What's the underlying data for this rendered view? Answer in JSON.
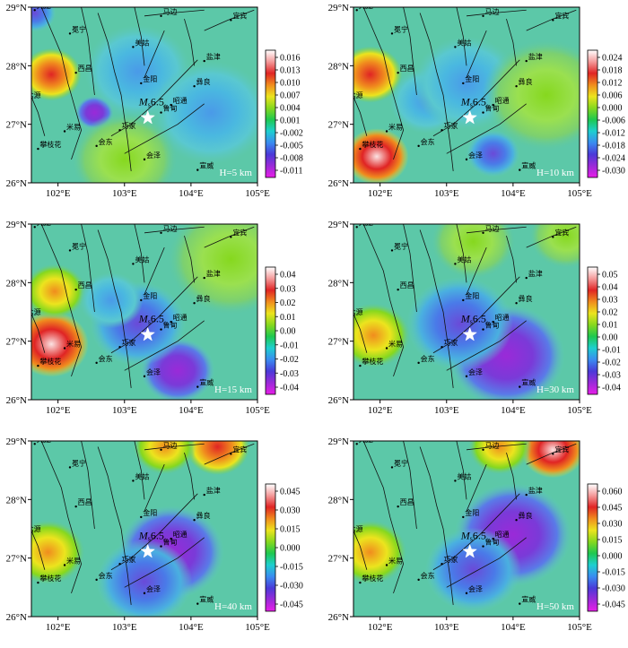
{
  "lat_labels": [
    "29°N",
    "28°N",
    "27°N",
    "26°N"
  ],
  "lon_labels": [
    "102°E",
    "103°E",
    "104°E",
    "105°E"
  ],
  "lat_range": [
    26,
    29
  ],
  "lon_range": [
    101.6,
    105
  ],
  "cities": [
    {
      "name": "九龙",
      "lon": 101.65,
      "lat": 28.95
    },
    {
      "name": "冕宁",
      "lon": 102.18,
      "lat": 28.55
    },
    {
      "name": "马边",
      "lon": 103.55,
      "lat": 28.85
    },
    {
      "name": "宜宾",
      "lon": 104.6,
      "lat": 28.78
    },
    {
      "name": "美姑",
      "lon": 103.13,
      "lat": 28.32
    },
    {
      "name": "盐津",
      "lon": 104.2,
      "lat": 28.08
    },
    {
      "name": "西昌",
      "lon": 102.27,
      "lat": 27.88
    },
    {
      "name": "金阳",
      "lon": 103.25,
      "lat": 27.7
    },
    {
      "name": "彝良",
      "lon": 104.05,
      "lat": 27.65
    },
    {
      "name": "盐源",
      "lon": 101.5,
      "lat": 27.42
    },
    {
      "name": "昭通",
      "lon": 103.7,
      "lat": 27.33
    },
    {
      "name": "鲁甸",
      "lon": 103.55,
      "lat": 27.2
    },
    {
      "name": "米易",
      "lon": 102.1,
      "lat": 26.88
    },
    {
      "name": "巧家",
      "lon": 102.93,
      "lat": 26.9
    },
    {
      "name": "会东",
      "lon": 102.58,
      "lat": 26.63
    },
    {
      "name": "会泽",
      "lon": 103.3,
      "lat": 26.4
    },
    {
      "name": "攀枝花",
      "lon": 101.7,
      "lat": 26.58
    },
    {
      "name": "宣威",
      "lon": 104.1,
      "lat": 26.22
    }
  ],
  "epicenter": {
    "lon": 103.35,
    "lat": 27.11,
    "label_main": "M",
    "label_sub": "s",
    "label_val": "6.5"
  },
  "panels": [
    {
      "depth": "H=5 km",
      "ticks": [
        "0.016",
        "0.013",
        "0.010",
        "0.007",
        "0.004",
        "0.001",
        "-0.002",
        "-0.005",
        "-0.008",
        "-0.011"
      ],
      "blobs": [
        {
          "lon": 101.9,
          "lat": 27.85,
          "amp": 1.0,
          "r": 0.28
        },
        {
          "lon": 101.65,
          "lat": 28.9,
          "amp": -0.8,
          "r": 0.2
        },
        {
          "lon": 102.55,
          "lat": 27.2,
          "amp": -0.9,
          "r": 0.18
        },
        {
          "lon": 103.2,
          "lat": 27.9,
          "amp": -0.4,
          "r": 0.5
        },
        {
          "lon": 104.3,
          "lat": 27.2,
          "amp": -0.3,
          "r": 0.55
        },
        {
          "lon": 103.0,
          "lat": 26.4,
          "amp": 0.25,
          "r": 0.5
        }
      ]
    },
    {
      "depth": "H=10 km",
      "ticks": [
        "0.024",
        "0.018",
        "0.012",
        "0.006",
        "0.000",
        "-0.006",
        "-0.012",
        "-0.018",
        "-0.024",
        "-0.030"
      ],
      "blobs": [
        {
          "lon": 101.85,
          "lat": 27.85,
          "amp": 0.9,
          "r": 0.3
        },
        {
          "lon": 101.95,
          "lat": 26.45,
          "amp": 1.2,
          "r": 0.3
        },
        {
          "lon": 102.7,
          "lat": 27.4,
          "amp": -0.5,
          "r": 0.35
        },
        {
          "lon": 103.7,
          "lat": 26.5,
          "amp": -0.7,
          "r": 0.25
        },
        {
          "lon": 103.3,
          "lat": 27.7,
          "amp": -0.35,
          "r": 0.5
        },
        {
          "lon": 104.5,
          "lat": 27.5,
          "amp": 0.15,
          "r": 0.6
        }
      ]
    },
    {
      "depth": "H=15 km",
      "ticks": [
        "0.04",
        "0.03",
        "0.02",
        "0.01",
        "0.00",
        "-0.01",
        "-0.02",
        "-0.03",
        "-0.04"
      ],
      "blobs": [
        {
          "lon": 101.9,
          "lat": 26.95,
          "amp": 1.2,
          "r": 0.35
        },
        {
          "lon": 101.95,
          "lat": 27.85,
          "amp": 0.6,
          "r": 0.3
        },
        {
          "lon": 103.8,
          "lat": 26.5,
          "amp": -0.9,
          "r": 0.35
        },
        {
          "lon": 103.2,
          "lat": 27.3,
          "amp": -0.55,
          "r": 0.45
        },
        {
          "lon": 102.8,
          "lat": 27.7,
          "amp": -0.4,
          "r": 0.3
        },
        {
          "lon": 104.6,
          "lat": 28.4,
          "amp": 0.15,
          "r": 0.6
        }
      ]
    },
    {
      "depth": "H=30 km",
      "ticks": [
        "0.05",
        "0.04",
        "0.03",
        "0.02",
        "0.01",
        "0.00",
        "-0.01",
        "-0.02",
        "-0.03",
        "-0.04"
      ],
      "blobs": [
        {
          "lon": 101.9,
          "lat": 27.1,
          "amp": 0.65,
          "r": 0.35
        },
        {
          "lon": 103.9,
          "lat": 26.75,
          "amp": -1.0,
          "r": 0.55
        },
        {
          "lon": 103.2,
          "lat": 27.3,
          "amp": -0.6,
          "r": 0.5
        },
        {
          "lon": 103.4,
          "lat": 28.7,
          "amp": 0.3,
          "r": 0.4
        },
        {
          "lon": 104.8,
          "lat": 28.8,
          "amp": 0.25,
          "r": 0.35
        }
      ]
    },
    {
      "depth": "H=40 km",
      "ticks": [
        "0.045",
        "0.030",
        "0.015",
        "0.000",
        "-0.015",
        "-0.030",
        "-0.045"
      ],
      "blobs": [
        {
          "lon": 101.85,
          "lat": 27.1,
          "amp": 0.5,
          "r": 0.35
        },
        {
          "lon": 103.7,
          "lat": 27.1,
          "amp": -1.0,
          "r": 0.5
        },
        {
          "lon": 103.3,
          "lat": 26.6,
          "amp": -0.6,
          "r": 0.45
        },
        {
          "lon": 104.4,
          "lat": 28.9,
          "amp": 0.9,
          "r": 0.3
        },
        {
          "lon": 103.6,
          "lat": 28.9,
          "amp": 0.5,
          "r": 0.3
        }
      ]
    },
    {
      "depth": "H=50 km",
      "ticks": [
        "0.060",
        "0.045",
        "0.030",
        "0.015",
        "0.000",
        "-0.015",
        "-0.030",
        "-0.045"
      ],
      "blobs": [
        {
          "lon": 101.85,
          "lat": 27.1,
          "amp": 0.45,
          "r": 0.35
        },
        {
          "lon": 104.0,
          "lat": 27.4,
          "amp": -1.0,
          "r": 0.55
        },
        {
          "lon": 103.4,
          "lat": 26.8,
          "amp": -0.6,
          "r": 0.45
        },
        {
          "lon": 104.6,
          "lat": 28.85,
          "amp": 1.2,
          "r": 0.3
        },
        {
          "lon": 103.8,
          "lat": 28.9,
          "amp": 0.6,
          "r": 0.3
        }
      ]
    }
  ]
}
